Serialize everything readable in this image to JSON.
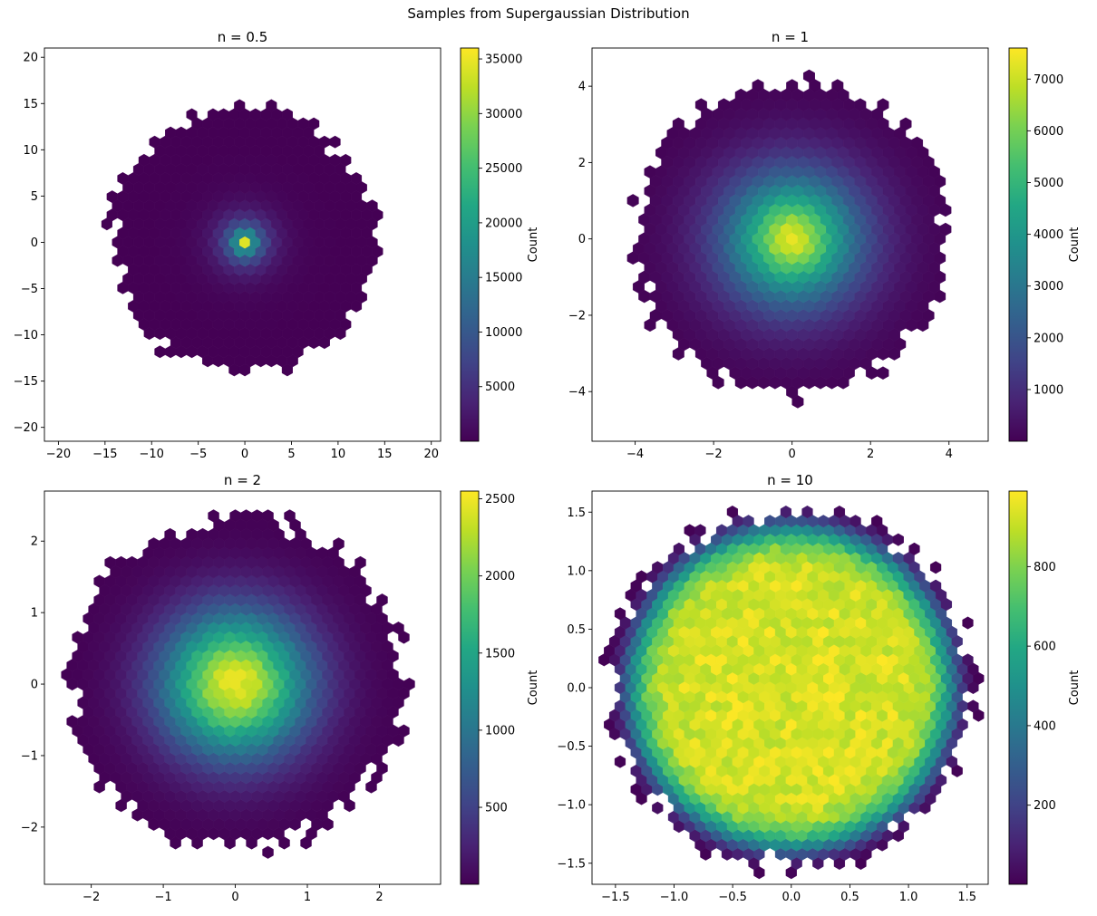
{
  "figure": {
    "title": "Samples from Supergaussian Distribution"
  },
  "chart_data": [
    {
      "type": "hexbin",
      "title": "n = 0.5",
      "shape_n": 0.5,
      "xlim": [
        -21.5,
        21.0
      ],
      "ylim": [
        -21.5,
        21.0
      ],
      "xticks": [
        -20,
        -15,
        -10,
        -5,
        0,
        5,
        10,
        15,
        20
      ],
      "xtick_labels": [
        "−20",
        "−15",
        "−10",
        "−5",
        "0",
        "5",
        "10",
        "15",
        "20"
      ],
      "yticks": [
        -20,
        -15,
        -10,
        -5,
        0,
        5,
        10,
        15,
        20
      ],
      "ytick_labels": [
        "−20",
        "−15",
        "−10",
        "−5",
        "0",
        "5",
        "10",
        "15",
        "20"
      ],
      "support_radius": 14.5,
      "peak_count": 36000,
      "colorbar": {
        "label": "Count",
        "range": [
          1,
          36000
        ],
        "ticks": [
          5000,
          10000,
          15000,
          20000,
          25000,
          30000,
          35000
        ],
        "tick_labels": [
          "5000",
          "10000",
          "15000",
          "20000",
          "25000",
          "30000",
          "35000"
        ]
      }
    },
    {
      "type": "hexbin",
      "title": "n = 1",
      "shape_n": 1,
      "xlim": [
        -5.1,
        5.0
      ],
      "ylim": [
        -5.3,
        5.0
      ],
      "xticks": [
        -4,
        -2,
        0,
        2,
        4
      ],
      "xtick_labels": [
        "−4",
        "−2",
        "0",
        "2",
        "4"
      ],
      "yticks": [
        -4,
        -2,
        0,
        2,
        4
      ],
      "ytick_labels": [
        "−4",
        "−2",
        "0",
        "2",
        "4"
      ],
      "support_radius": 4.1,
      "peak_count": 7600,
      "colorbar": {
        "label": "Count",
        "range": [
          1,
          7600
        ],
        "ticks": [
          1000,
          2000,
          3000,
          4000,
          5000,
          6000,
          7000
        ],
        "tick_labels": [
          "1000",
          "2000",
          "3000",
          "4000",
          "5000",
          "6000",
          "7000"
        ]
      }
    },
    {
      "type": "hexbin",
      "title": "n = 2",
      "shape_n": 2,
      "xlim": [
        -2.65,
        2.85
      ],
      "ylim": [
        -2.8,
        2.7
      ],
      "xticks": [
        -2,
        -1,
        0,
        1,
        2
      ],
      "xtick_labels": [
        "−2",
        "−1",
        "0",
        "1",
        "2"
      ],
      "yticks": [
        -2,
        -1,
        0,
        1,
        2
      ],
      "ytick_labels": [
        "−2",
        "−1",
        "0",
        "1",
        "2"
      ],
      "support_radius": 2.35,
      "peak_count": 2550,
      "colorbar": {
        "label": "Count",
        "range": [
          1,
          2550
        ],
        "ticks": [
          500,
          1000,
          1500,
          2000,
          2500
        ],
        "tick_labels": [
          "500",
          "1000",
          "1500",
          "2000",
          "2500"
        ]
      }
    },
    {
      "type": "hexbin",
      "title": "n = 10",
      "shape_n": 10,
      "xlim": [
        -1.7,
        1.68
      ],
      "ylim": [
        -1.68,
        1.68
      ],
      "xticks": [
        -1.5,
        -1.0,
        -0.5,
        0.0,
        0.5,
        1.0,
        1.5
      ],
      "xtick_labels": [
        "−1.5",
        "−1.0",
        "−0.5",
        "0.0",
        "0.5",
        "1.0",
        "1.5"
      ],
      "yticks": [
        -1.5,
        -1.0,
        -0.5,
        0.0,
        0.5,
        1.0,
        1.5
      ],
      "ytick_labels": [
        "−1.5",
        "−1.0",
        "−0.5",
        "0.0",
        "0.5",
        "1.0",
        "1.5"
      ],
      "support_radius": 1.55,
      "peak_count": 990,
      "colorbar": {
        "label": "Count",
        "range": [
          1,
          990
        ],
        "ticks": [
          200,
          400,
          600,
          800
        ],
        "tick_labels": [
          "200",
          "400",
          "600",
          "800"
        ]
      }
    }
  ]
}
